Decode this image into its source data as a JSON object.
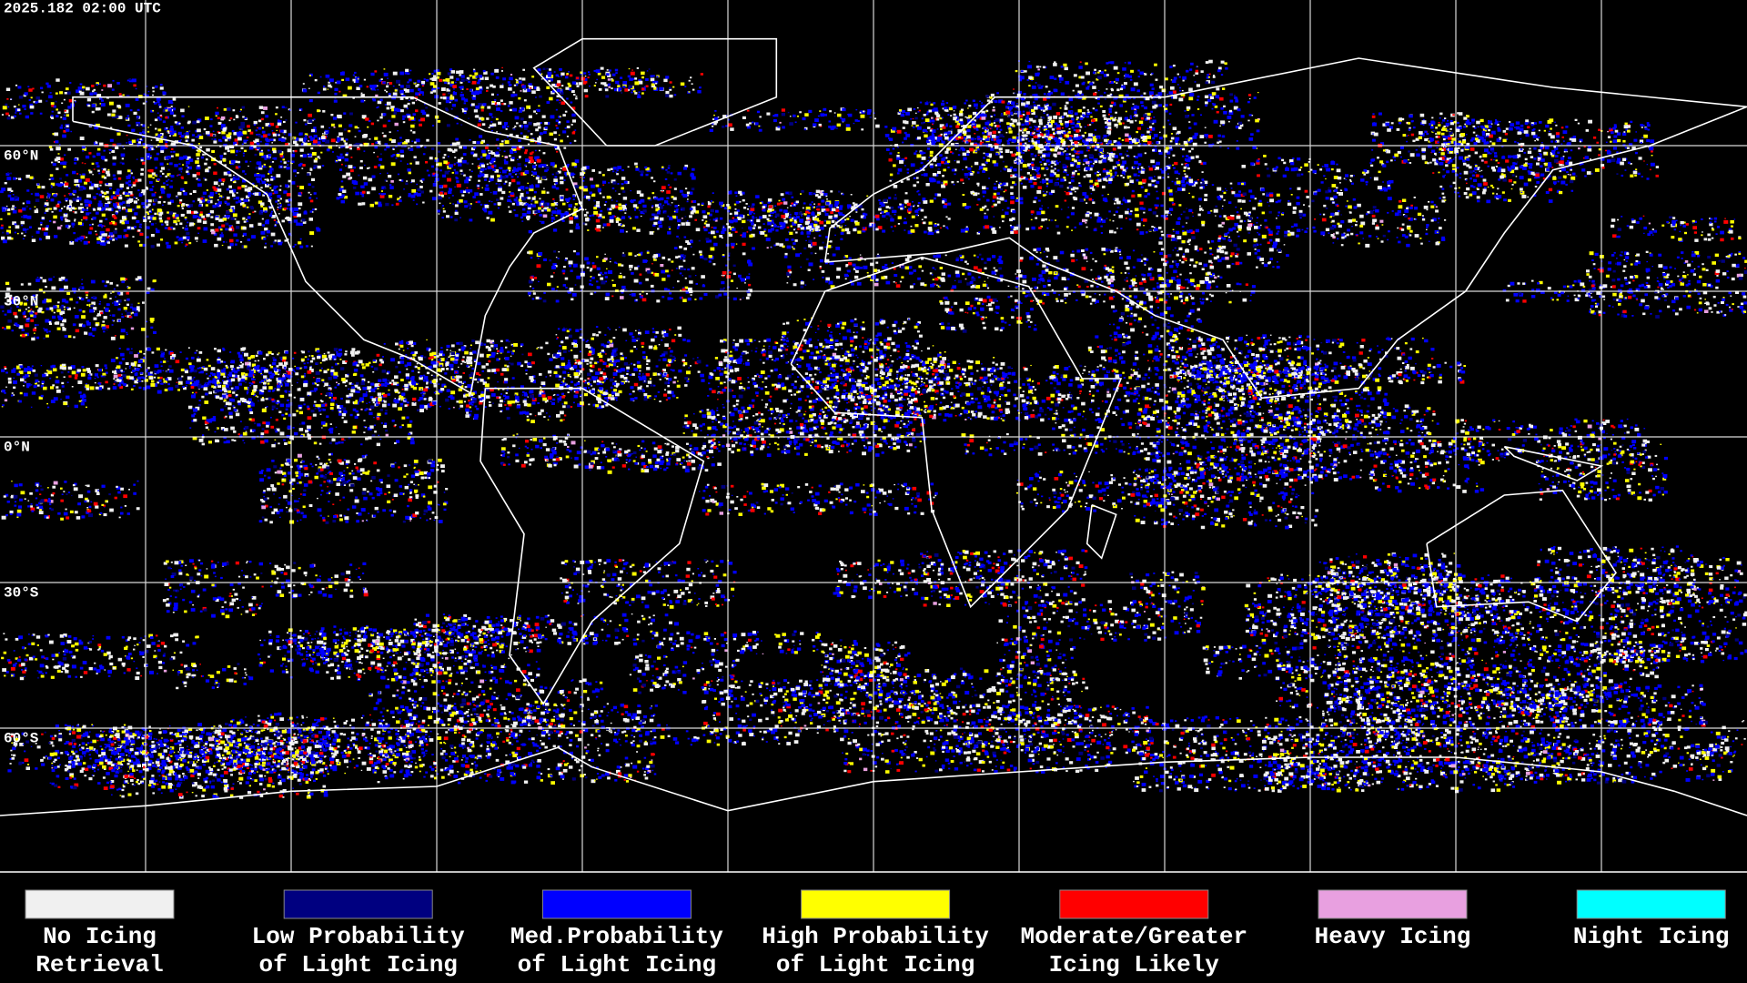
{
  "header": {
    "timestamp": "2025.182 02:00 UTC"
  },
  "map": {
    "lat_labels": [
      "60°N",
      "30°N",
      "0°N",
      "30°S",
      "60°S"
    ]
  },
  "legend": {
    "items": [
      {
        "lines": [
          "No Icing",
          "Retrieval"
        ],
        "color": "#f0f0f0"
      },
      {
        "lines": [
          "Low Probability",
          "of Light Icing"
        ],
        "color": "#000080"
      },
      {
        "lines": [
          "Med.Probability",
          "of Light Icing"
        ],
        "color": "#0000ff"
      },
      {
        "lines": [
          "High Probability",
          "of Light Icing"
        ],
        "color": "#ffff00"
      },
      {
        "lines": [
          "Moderate/Greater",
          "Icing Likely"
        ],
        "color": "#ff0000"
      },
      {
        "lines": [
          "Heavy Icing"
        ],
        "color": "#e8a0e0"
      },
      {
        "lines": [
          "Night Icing"
        ],
        "color": "#00ffff"
      }
    ]
  }
}
